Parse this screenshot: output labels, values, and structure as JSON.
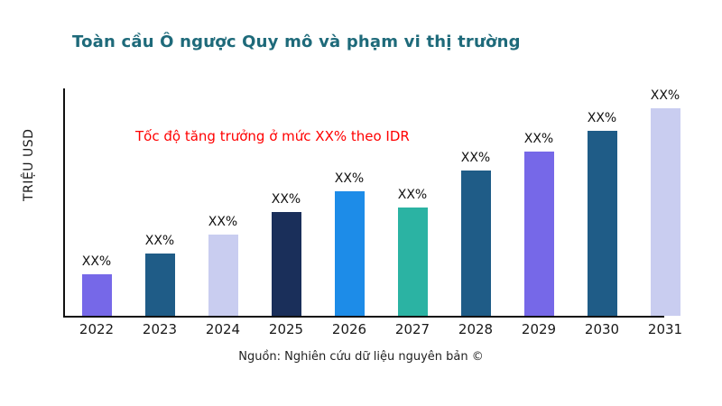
{
  "header": {
    "title": "Toàn cầu Ô ngược Quy mô và phạm vi thị trường"
  },
  "annotation": {
    "text": "Tốc độ tăng trưởng ở mức XX% theo IDR",
    "color": "#ff0000"
  },
  "axis": {
    "ylabel": "TRIỆU USD"
  },
  "footer": {
    "source": "Nguồn: Nghiên cứu dữ liệu nguyên bản ©"
  },
  "chart_data": {
    "type": "bar",
    "title": "Toàn cầu Ô ngược Quy mô và phạm vi thị trường",
    "xlabel": "",
    "ylabel": "TRIỆU USD",
    "categories": [
      "2022",
      "2023",
      "2024",
      "2025",
      "2026",
      "2027",
      "2028",
      "2029",
      "2030",
      "2031"
    ],
    "values": [
      20,
      30,
      39,
      50,
      60,
      52,
      70,
      79,
      89,
      100
    ],
    "values_note": "bars are unlabeled numerically; values are relative heights on a 0-100 scale",
    "bar_labels": [
      "XX%",
      "XX%",
      "XX%",
      "XX%",
      "XX%",
      "XX%",
      "XX%",
      "XX%",
      "XX%",
      "XX%"
    ],
    "bar_colors": [
      "#7668e8",
      "#1f5c87",
      "#c9cdf0",
      "#1a2f5a",
      "#1d8ce8",
      "#2bb3a3",
      "#1f5c87",
      "#7668e8",
      "#1f5c87",
      "#c9cdf0"
    ],
    "ylim": [
      0,
      100
    ],
    "grid": false,
    "legend": "none",
    "title_color": "#1e6a7a"
  }
}
